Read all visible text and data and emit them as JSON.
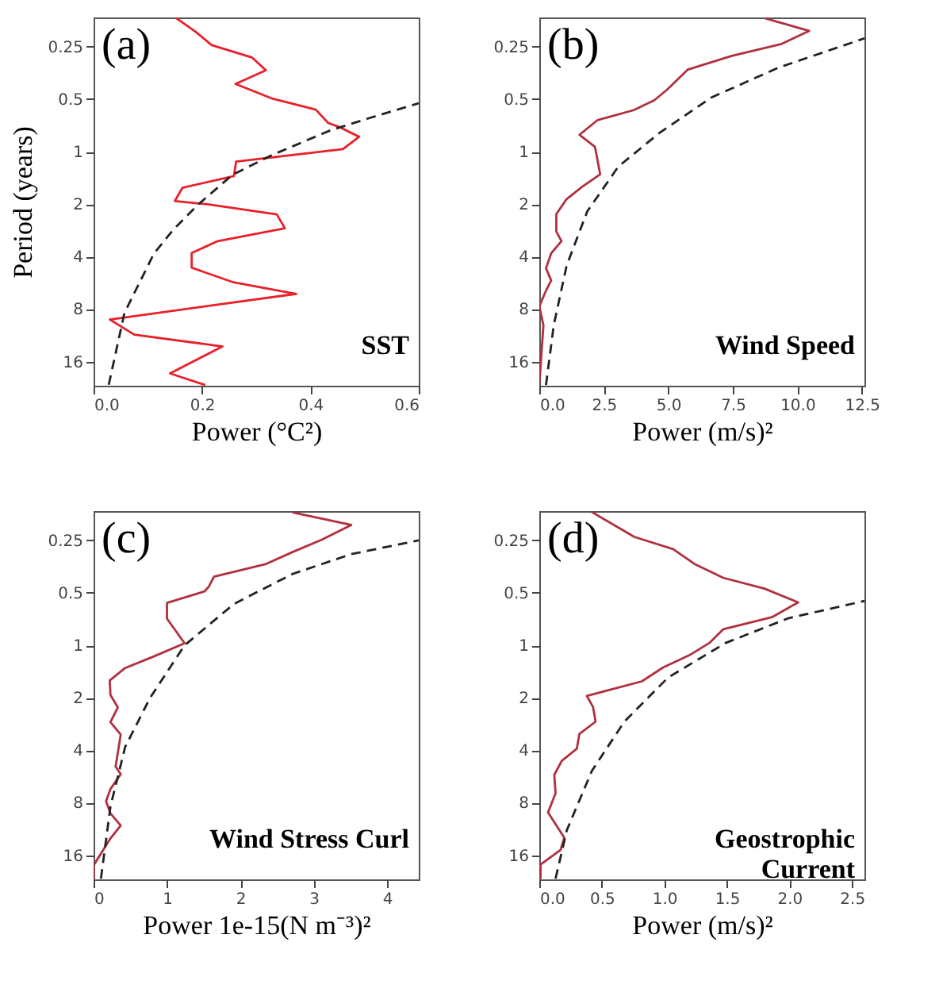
{
  "chart_data": [
    {
      "type": "line",
      "xlabel": "Power (°C²)",
      "ylabel": "Period (years)",
      "annotations": [
        "(a)",
        "SST"
      ],
      "log": "y",
      "xlim": [
        0,
        0.6
      ],
      "xticks": [
        {
          "value": 0,
          "label": "0.0"
        },
        0.2,
        0.4,
        0.6
      ],
      "ylim": [
        22,
        0.17
      ],
      "yticks": [
        0.25,
        0.5,
        1,
        2,
        4,
        8,
        16
      ],
      "series": [
        {
          "color": "#e8202a",
          "line_style": "solid",
          "x": [
            0.152,
            0.188,
            0.218,
            0.292,
            0.318,
            0.262,
            0.328,
            0.41,
            0.433,
            0.451,
            0.49,
            0.46,
            0.263,
            0.259,
            0.164,
            0.15,
            0.213,
            0.338,
            0.353,
            0.229,
            0.181,
            0.181,
            0.256,
            0.374,
            0.03,
            0.075,
            0.238,
            0.141,
            0.206
          ],
          "values": [
            0.171,
            0.205,
            0.245,
            0.288,
            0.341,
            0.409,
            0.494,
            0.574,
            0.685,
            0.717,
            0.822,
            0.968,
            1.14,
            1.38,
            1.61,
            1.92,
            2.01,
            2.29,
            2.75,
            3.26,
            3.81,
            4.63,
            5.59,
            6.54,
            9.18,
            11.2,
            13.1,
            18.7,
            21.8
          ]
        },
        {
          "type": "line",
          "color": "#222222",
          "line_style": "dashed",
          "x": [
            0.028,
            0.057,
            0.084,
            0.111,
            0.148,
            0.193,
            0.256,
            0.328,
            0.437,
            0.509,
            0.6
          ],
          "values": [
            21.7,
            8.4,
            5.7,
            3.86,
            2.78,
            2.01,
            1.36,
            1.05,
            0.755,
            0.642,
            0.528
          ]
        }
      ]
    },
    {
      "type": "line",
      "xlabel": "Power (m/s)²",
      "annotations": [
        "(b)",
        "Wind Speed"
      ],
      "log": "y",
      "xlim": [
        0,
        12.6
      ],
      "xticks": [
        {
          "value": 0,
          "label": "0.0"
        },
        2.5,
        {
          "value": 5,
          "label": "5.0"
        },
        7.5,
        {
          "value": 10,
          "label": "10.0"
        },
        12.5
      ],
      "ylim": [
        22,
        0.17
      ],
      "yticks": [
        0.25,
        0.5,
        1,
        2,
        4,
        8,
        16
      ],
      "series": [
        {
          "color": "#b03040",
          "line_style": "solid",
          "x": [
            8.76,
            10.46,
            9.36,
            7.46,
            5.76,
            4.96,
            4.46,
            3.66,
            2.26,
            1.56,
            2.16,
            2.36,
            1.66,
            1.06,
            0.66,
            0.66,
            0.86,
            0.46,
            0.26,
            0.46,
            0.26,
            0,
            0.16,
            0
          ],
          "values": [
            0.172,
            0.203,
            0.242,
            0.282,
            0.338,
            0.44,
            0.507,
            0.578,
            0.659,
            0.8,
            0.94,
            1.35,
            1.59,
            1.87,
            2.28,
            2.87,
            3.26,
            3.83,
            4.67,
            5.48,
            6.27,
            7.7,
            9.9,
            21.8
          ]
        },
        {
          "type": "line",
          "color": "#222222",
          "line_style": "dashed",
          "x": [
            0.26,
            0.56,
            1.06,
            1.86,
            3.06,
            4.66,
            6.66,
            9.26,
            12.6
          ],
          "values": [
            21.8,
            9.9,
            4.5,
            2.2,
            1.22,
            0.78,
            0.49,
            0.33,
            0.224
          ]
        }
      ]
    },
    {
      "type": "line",
      "xlabel": "Power 1e-15(N m⁻³)²",
      "annotations": [
        "(c)",
        "Wind Stress Curl"
      ],
      "log": "y",
      "xlim": [
        0,
        4.43
      ],
      "xticks": [
        0,
        1,
        2,
        3,
        4
      ],
      "ylim": [
        22,
        0.17
      ],
      "yticks": [
        0.25,
        0.5,
        1,
        2,
        4,
        8,
        16
      ],
      "series": [
        {
          "color": "#b03040",
          "line_style": "solid",
          "x": [
            2.71,
            3.51,
            3.11,
            2.71,
            2.34,
            1.64,
            1.57,
            1.51,
            1.0,
            1.0,
            1.24,
            0.84,
            0.43,
            0.22,
            0.23,
            0.33,
            0.23,
            0.37,
            0.3,
            0.37,
            0.23,
            0.17,
            0.23,
            0.37,
            0.23,
            0,
            0
          ],
          "values": [
            0.173,
            0.204,
            0.248,
            0.292,
            0.343,
            0.404,
            0.461,
            0.491,
            0.571,
            0.703,
            0.974,
            1.15,
            1.35,
            1.59,
            1.93,
            2.27,
            2.76,
            3.25,
            4.97,
            5.49,
            6.67,
            7.84,
            9.2,
            10.8,
            12.8,
            18.3,
            21.8
          ]
        },
        {
          "type": "line",
          "color": "#222222",
          "line_style": "dashed",
          "x": [
            0.1,
            0.23,
            0.43,
            0.77,
            1.24,
            1.91,
            2.71,
            3.51,
            4.43
          ],
          "values": [
            21.8,
            8.4,
            3.83,
            2.0,
            1.0,
            0.58,
            0.39,
            0.3,
            0.25
          ]
        }
      ]
    },
    {
      "type": "line",
      "xlabel": "Power (m/s)²",
      "annotations": [
        "(d)",
        "Geostrophic\nCurrent"
      ],
      "log": "y",
      "xlim": [
        0,
        2.6
      ],
      "xticks": [
        {
          "value": 0,
          "label": "0.0"
        },
        0.5,
        {
          "value": 1,
          "label": "1.0"
        },
        1.5,
        {
          "value": 2,
          "label": "2.0"
        },
        2.5
      ],
      "ylim": [
        22,
        0.17
      ],
      "yticks": [
        0.25,
        0.5,
        1,
        2,
        4,
        8,
        16
      ],
      "series": [
        {
          "color": "#b03040",
          "line_style": "solid",
          "x": [
            0.42,
            0.76,
            1.07,
            1.24,
            1.47,
            1.8,
            2.07,
            1.86,
            1.47,
            1.36,
            1.2,
            0.99,
            0.82,
            0.38,
            0.43,
            0.45,
            0.32,
            0.3,
            0.18,
            0.12,
            0.13,
            0.07,
            0.2,
            0.17,
            0.01,
            0.01
          ],
          "values": [
            0.172,
            0.239,
            0.281,
            0.341,
            0.41,
            0.473,
            0.567,
            0.69,
            0.81,
            0.97,
            1.14,
            1.34,
            1.61,
            1.95,
            2.26,
            2.74,
            3.23,
            3.92,
            4.6,
            5.53,
            7.05,
            9.1,
            12.7,
            14.9,
            18.1,
            21.8
          ]
        },
        {
          "type": "line",
          "color": "#222222",
          "line_style": "dashed",
          "x": [
            0.13,
            0.22,
            0.42,
            0.68,
            1.03,
            1.49,
            1.99,
            2.6
          ],
          "values": [
            21.8,
            11.5,
            5.26,
            2.74,
            1.53,
            0.97,
            0.7,
            0.557
          ]
        }
      ]
    }
  ]
}
